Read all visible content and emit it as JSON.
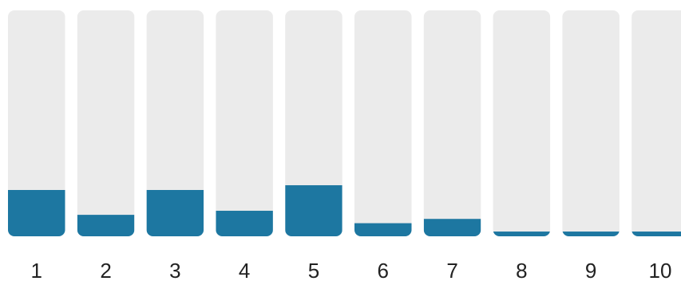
{
  "chart_data": {
    "type": "bar",
    "categories": [
      "1",
      "2",
      "3",
      "4",
      "5",
      "6",
      "7",
      "8",
      "9",
      "10"
    ],
    "values": [
      20.5,
      9.5,
      20.5,
      11.3,
      22.6,
      5.8,
      7.7,
      2.1,
      2.1,
      2.1
    ],
    "ylim": [
      0,
      100
    ],
    "title": "",
    "xlabel": "",
    "ylabel": "",
    "grid": false,
    "legend": false,
    "colors": {
      "bar": "#1d77a1",
      "track": "#ebebeb",
      "text": "#222222"
    }
  }
}
